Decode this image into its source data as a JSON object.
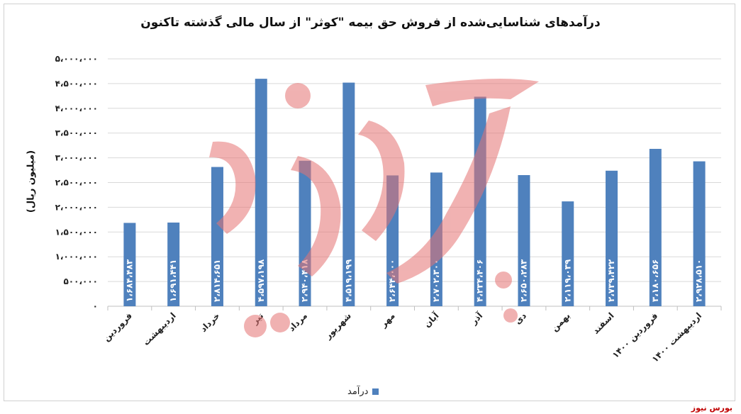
{
  "chart_data": {
    "type": "bar",
    "title": "درآمدهای شناسایی‌شده از فروش حق بیمه \"کوثر\" از سال مالی گذشته تاکنون",
    "ylabel": "(میلیون ریال)",
    "xlabel": "",
    "ylim": [
      0,
      5000000
    ],
    "yticks": [
      0,
      500000,
      1000000,
      1500000,
      2000000,
      2500000,
      3000000,
      3500000,
      4000000,
      4500000,
      5000000
    ],
    "ytick_labels": [
      "۰",
      "۵۰۰،۰۰۰",
      "۱،۰۰۰،۰۰۰",
      "۱،۵۰۰،۰۰۰",
      "۲،۰۰۰،۰۰۰",
      "۲،۵۰۰،۰۰۰",
      "۳،۰۰۰،۰۰۰",
      "۳،۵۰۰،۰۰۰",
      "۴،۰۰۰،۰۰۰",
      "۴،۵۰۰،۰۰۰",
      "۵،۰۰۰،۰۰۰"
    ],
    "categories": [
      "فروردین",
      "اردیبهشت",
      "خرداد",
      "تیر",
      "مرداد",
      "شهریور",
      "مهر",
      "آبان",
      "آذر",
      "دی",
      "بهمن",
      "اسفند",
      "فروردین ۱۴۰۰",
      "اردیبهشت ۱۴۰۰"
    ],
    "series": [
      {
        "name": "درآمد",
        "color": "#4f81bd",
        "values": [
          1684483,
          1691441,
          2814651,
          4597198,
          2940418,
          4519199,
          2644000,
          2702300,
          4234406,
          2650283,
          2119039,
          2739422,
          3180656,
          2928510
        ],
        "value_labels": [
          "۱،۶۸۴،۴۸۳",
          "۱،۶۹۱،۴۴۱",
          "۲،۸۱۴،۶۵۱",
          "۴،۵۹۷،۱۹۸",
          "۲،۹۴۰،۴۱۸",
          "۴،۵۱۹،۱۹۹",
          "۲،۶۴۴،۰۰۰",
          "۲،۷۰۲،۳۰۰",
          "۴،۲۳۴،۴۰۶",
          "۲،۶۵۰،۲۸۳",
          "۲،۱۱۹،۰۳۹",
          "۲،۷۳۹،۴۲۲",
          "۳،۱۸۰،۶۵۶",
          "۲،۹۲۸،۵۱۰"
        ]
      }
    ],
    "grid": true,
    "legend": "bottom-center"
  },
  "source": "بورس نیوز",
  "watermark": "بورس نیوز"
}
